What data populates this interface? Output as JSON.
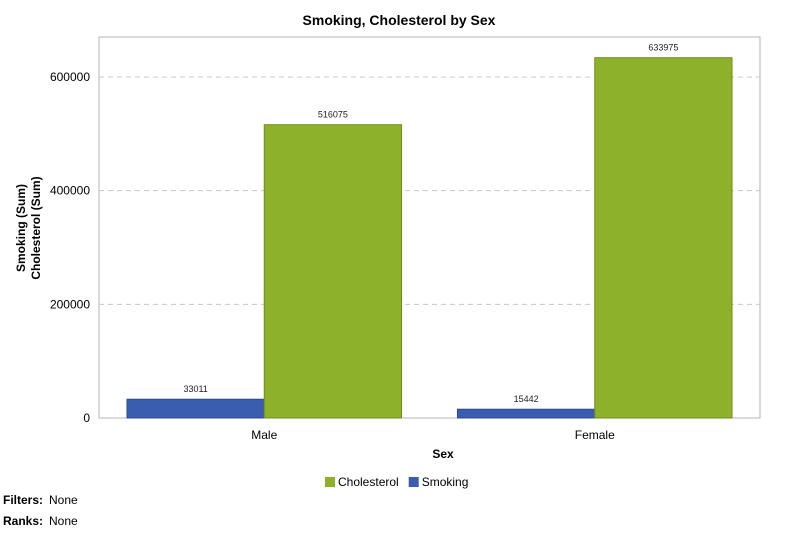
{
  "chart_data": {
    "type": "bar",
    "title": "Smoking, Cholesterol by Sex",
    "xlabel": "Sex",
    "ylabel": [
      "Smoking (Sum)",
      "Cholesterol (Sum)"
    ],
    "categories": [
      "Male",
      "Female"
    ],
    "series": [
      {
        "name": "Smoking",
        "values": [
          33011,
          15442
        ],
        "color": "#3a5db0"
      },
      {
        "name": "Cholesterol",
        "values": [
          516075,
          633975
        ],
        "color": "#8db12a"
      }
    ],
    "ylim": [
      0,
      670000
    ],
    "yticks": [
      0,
      200000,
      400000,
      600000
    ],
    "grid": true,
    "legend_position": "bottom",
    "legend_order": [
      "Cholesterol",
      "Smoking"
    ]
  },
  "footer": {
    "filters_label": "Filters:",
    "filters_value": "None",
    "ranks_label": "Ranks:",
    "ranks_value": "None"
  }
}
